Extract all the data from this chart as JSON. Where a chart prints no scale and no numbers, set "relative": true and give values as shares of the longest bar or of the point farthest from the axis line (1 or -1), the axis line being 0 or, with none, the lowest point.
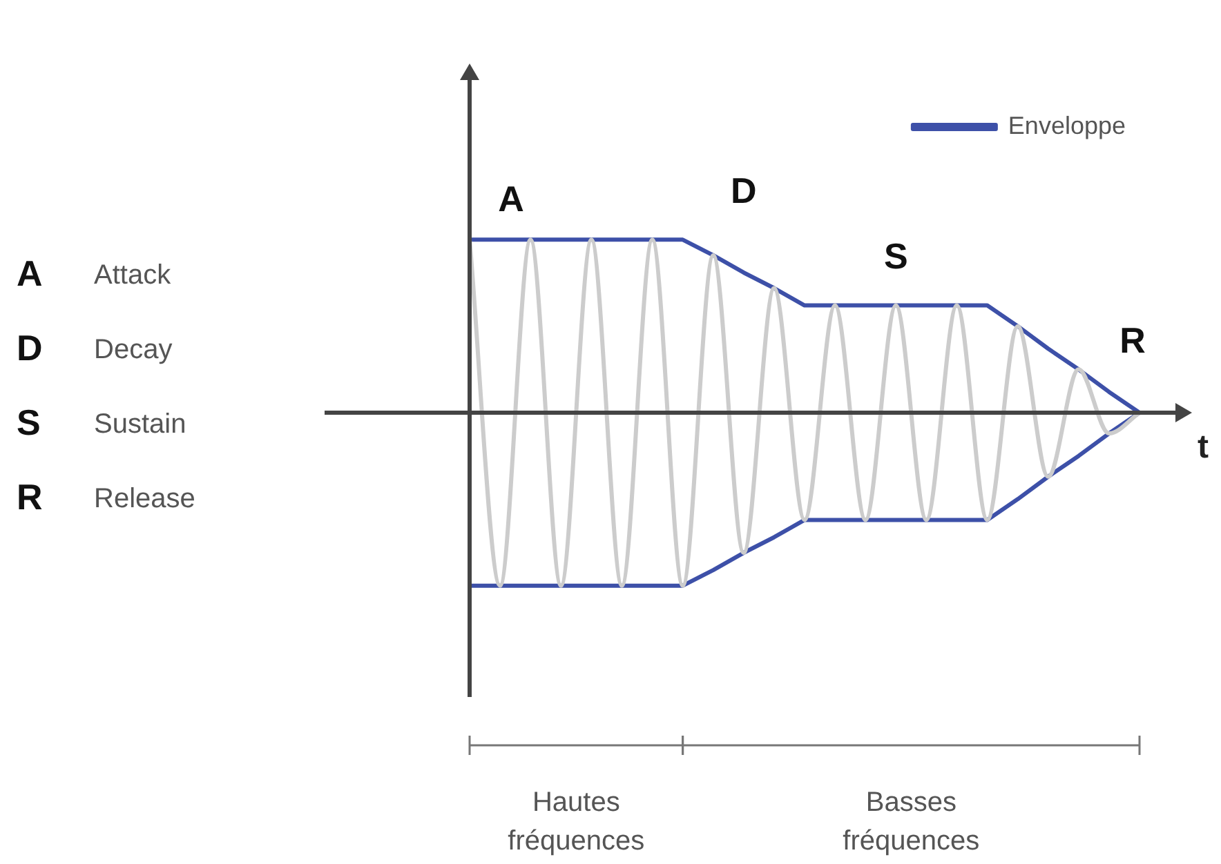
{
  "chart_data": {
    "type": "line",
    "relative": true,
    "xlabel": "t",
    "legend": "top right",
    "marker": "none",
    "categories": [
      null,
      null,
      null,
      null,
      null,
      null,
      null,
      null,
      null,
      null,
      null,
      null,
      null,
      null,
      null,
      null,
      null,
      null,
      null,
      null,
      null,
      null,
      null
    ],
    "series": [
      {
        "name": "Enveloppe",
        "color": "#3d50a8",
        "values": [
          1,
          1,
          1,
          1,
          1,
          1,
          1,
          1,
          0.91,
          0.81,
          0.72,
          0.62,
          0.62,
          0.62,
          0.62,
          0.62,
          0.62,
          0.62,
          0.5,
          0.37,
          0.25,
          0.12,
          0
        ]
      },
      {
        "color": "#3d50a8",
        "values": [
          -1,
          -1,
          -1,
          -1,
          -1,
          -1,
          -1,
          -1,
          -0.91,
          -0.81,
          -0.72,
          -0.62,
          -0.62,
          -0.62,
          -0.62,
          -0.62,
          -0.62,
          -0.62,
          -0.5,
          -0.37,
          -0.25,
          -0.12,
          0
        ]
      },
      {
        "color": "#cccccc",
        "values": [
          1,
          -1,
          1,
          -1,
          1,
          -1,
          1,
          -1,
          0.91,
          -0.81,
          0.72,
          -0.62,
          0.62,
          -0.62,
          0.62,
          -0.62,
          0.62,
          -0.62,
          0.5,
          -0.37,
          0.25,
          -0.12,
          0
        ]
      }
    ],
    "annotations": [
      "A",
      "D",
      "S",
      "R",
      "A Attack",
      "D Decay",
      "S Sustain",
      "R Release",
      "Hautes fréquences",
      "Basses fréquences"
    ]
  }
}
